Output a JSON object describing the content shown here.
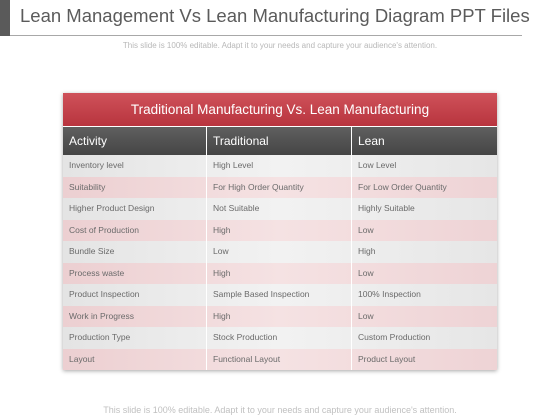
{
  "slide": {
    "title": "Lean Management Vs Lean Manufacturing Diagram PPT Files",
    "subtitle": "This slide is 100% editable. Adapt it to your needs and capture your audience's attention.",
    "footer": "This slide is 100% editable. Adapt it to your needs and capture your audience's attention."
  },
  "table": {
    "title": "Traditional Manufacturing Vs. Lean Manufacturing",
    "columns": [
      "Activity",
      "Traditional",
      "Lean"
    ],
    "rows": [
      [
        "Inventory  level",
        "High Level",
        "Low Level"
      ],
      [
        "Suitability",
        "For High Order Quantity",
        "For Low Order Quantity"
      ],
      [
        "Higher Product Design",
        "Not Suitable",
        "Highly  Suitable"
      ],
      [
        "Cost of Production",
        "High",
        "Low"
      ],
      [
        "Bundle Size",
        "Low",
        "High"
      ],
      [
        "Process waste",
        "High",
        "Low"
      ],
      [
        "Product Inspection",
        "Sample Based Inspection",
        "100% Inspection"
      ],
      [
        "Work in Progress",
        "High",
        "Low"
      ],
      [
        "Production Type",
        "Stock Production",
        "Custom Production"
      ],
      [
        "Layout",
        "Functional  Layout",
        "Product Layout"
      ]
    ]
  },
  "colors": {
    "header_red": "#c0404a",
    "column_header_gray": "#505050",
    "row_gray": "#ebebeb",
    "row_pink": "#f2dadb"
  }
}
